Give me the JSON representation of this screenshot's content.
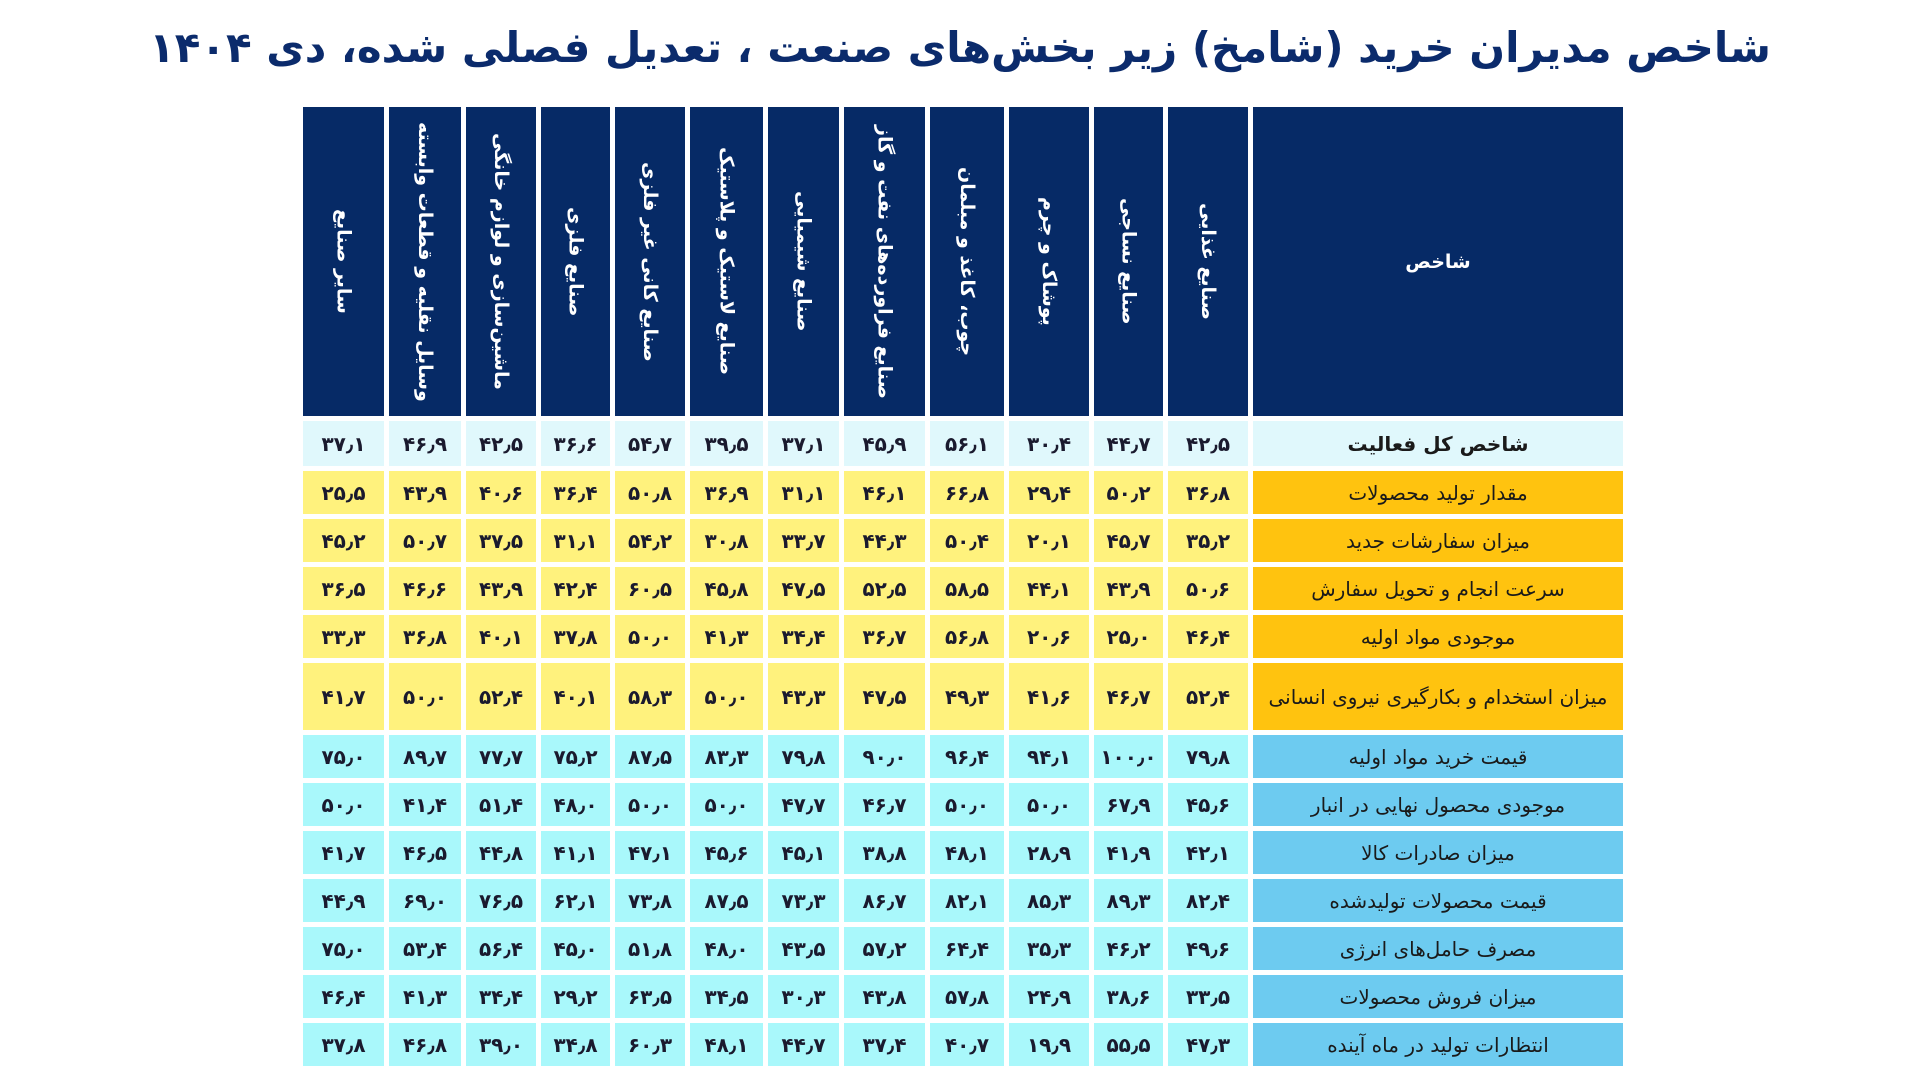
{
  "title": "شاخص مدیران خرید (شامخ) زیر بخش‌های صنعت ، تعدیل فصلی شده، دی ۱۴۰۴",
  "colors": {
    "header": "#062a66",
    "title": "#0b2b6c",
    "label_yellow": "#ffc30f",
    "cell_yellow": "#fff27d",
    "label_blue": "#6dcbf0",
    "cell_blue": "#a9f8fb",
    "total_row": "#e0f8fc"
  },
  "table": {
    "corner_header": "شاخص",
    "columns": [
      "صنایع غذایی",
      "صنایع نساجی",
      "پوشاک و چرم",
      "چوب، کاغذ و مبلمان",
      "صنایع فراورده‌های نفت و گاز",
      "صنایع شیمیایی",
      "صنایع لاستیک و پلاستیک",
      "صنایع کانی غیر فلزی",
      "صنایع فلزی",
      "ماشین‌سازی و لوازم خانگی",
      "وسایل نقلیه و قطعات وابسته",
      "سایر صنایع"
    ],
    "rows": [
      {
        "label": "شاخص کل فعالیت",
        "group": "total",
        "values": [
          "۴۲٫۵",
          "۴۴٫۷",
          "۳۰٫۴",
          "۵۶٫۱",
          "۴۵٫۹",
          "۳۷٫۱",
          "۳۹٫۵",
          "۵۴٫۷",
          "۳۶٫۶",
          "۴۲٫۵",
          "۴۶٫۹",
          "۳۷٫۱"
        ]
      },
      {
        "label": "مقدار تولید محصولات",
        "group": "yellow",
        "values": [
          "۳۶٫۸",
          "۵۰٫۲",
          "۲۹٫۴",
          "۶۶٫۸",
          "۴۶٫۱",
          "۳۱٫۱",
          "۳۶٫۹",
          "۵۰٫۸",
          "۳۶٫۴",
          "۴۰٫۶",
          "۴۳٫۹",
          "۲۵٫۵"
        ]
      },
      {
        "label": "میزان سفارشات جدید",
        "group": "yellow",
        "values": [
          "۳۵٫۲",
          "۴۵٫۷",
          "۲۰٫۱",
          "۵۰٫۴",
          "۴۴٫۳",
          "۳۳٫۷",
          "۳۰٫۸",
          "۵۴٫۲",
          "۳۱٫۱",
          "۳۷٫۵",
          "۵۰٫۷",
          "۴۵٫۲"
        ]
      },
      {
        "label": "سرعت انجام و تحویل سفارش",
        "group": "yellow",
        "values": [
          "۵۰٫۶",
          "۴۳٫۹",
          "۴۴٫۱",
          "۵۸٫۵",
          "۵۲٫۵",
          "۴۷٫۵",
          "۴۵٫۸",
          "۶۰٫۵",
          "۴۲٫۴",
          "۴۳٫۹",
          "۴۶٫۶",
          "۳۶٫۵"
        ]
      },
      {
        "label": "موجودی مواد اولیه",
        "group": "yellow",
        "values": [
          "۴۶٫۴",
          "۲۵٫۰",
          "۲۰٫۶",
          "۵۶٫۸",
          "۳۶٫۷",
          "۳۴٫۴",
          "۴۱٫۳",
          "۵۰٫۰",
          "۳۷٫۸",
          "۴۰٫۱",
          "۳۶٫۸",
          "۳۳٫۳"
        ]
      },
      {
        "label": "میزان استخدام و بکارگیری نیروی انسانی",
        "group": "yellow",
        "values": [
          "۵۲٫۴",
          "۴۶٫۷",
          "۴۱٫۶",
          "۴۹٫۳",
          "۴۷٫۵",
          "۴۳٫۳",
          "۵۰٫۰",
          "۵۸٫۳",
          "۴۰٫۱",
          "۵۲٫۴",
          "۵۰٫۰",
          "۴۱٫۷"
        ]
      },
      {
        "label": "قیمت خرید مواد اولیه",
        "group": "blue",
        "values": [
          "۷۹٫۸",
          "۱۰۰٫۰",
          "۹۴٫۱",
          "۹۶٫۴",
          "۹۰٫۰",
          "۷۹٫۸",
          "۸۳٫۳",
          "۸۷٫۵",
          "۷۵٫۲",
          "۷۷٫۷",
          "۸۹٫۷",
          "۷۵٫۰"
        ]
      },
      {
        "label": "موجودی محصول نهایی در انبار",
        "group": "blue",
        "values": [
          "۴۵٫۶",
          "۶۷٫۹",
          "۵۰٫۰",
          "۵۰٫۰",
          "۴۶٫۷",
          "۴۷٫۷",
          "۵۰٫۰",
          "۵۰٫۰",
          "۴۸٫۰",
          "۵۱٫۴",
          "۴۱٫۴",
          "۵۰٫۰"
        ]
      },
      {
        "label": "میزان صادرات کالا",
        "group": "blue",
        "values": [
          "۴۲٫۱",
          "۴۱٫۹",
          "۲۸٫۹",
          "۴۸٫۱",
          "۳۸٫۸",
          "۴۵٫۱",
          "۴۵٫۶",
          "۴۷٫۱",
          "۴۱٫۱",
          "۴۴٫۸",
          "۴۶٫۵",
          "۴۱٫۷"
        ]
      },
      {
        "label": "قیمت محصولات تولیدشده",
        "group": "blue",
        "values": [
          "۸۲٫۴",
          "۸۹٫۳",
          "۸۵٫۳",
          "۸۲٫۱",
          "۸۶٫۷",
          "۷۳٫۳",
          "۸۷٫۵",
          "۷۳٫۸",
          "۶۲٫۱",
          "۷۶٫۵",
          "۶۹٫۰",
          "۴۴٫۹"
        ]
      },
      {
        "label": "مصرف حامل‌های انرژی",
        "group": "blue",
        "values": [
          "۴۹٫۶",
          "۴۶٫۲",
          "۳۵٫۳",
          "۶۴٫۴",
          "۵۷٫۲",
          "۴۳٫۵",
          "۴۸٫۰",
          "۵۱٫۸",
          "۴۵٫۰",
          "۵۶٫۴",
          "۵۳٫۴",
          "۷۵٫۰"
        ]
      },
      {
        "label": "میزان فروش محصولات",
        "group": "blue",
        "values": [
          "۳۳٫۵",
          "۳۸٫۶",
          "۲۴٫۹",
          "۵۷٫۸",
          "۴۳٫۸",
          "۳۰٫۳",
          "۳۴٫۵",
          "۶۳٫۵",
          "۲۹٫۲",
          "۳۴٫۴",
          "۴۱٫۳",
          "۴۶٫۴"
        ]
      },
      {
        "label": "انتظارات تولید در ماه آینده",
        "group": "blue",
        "values": [
          "۴۷٫۳",
          "۵۵٫۵",
          "۱۹٫۹",
          "۴۰٫۷",
          "۳۷٫۴",
          "۴۴٫۷",
          "۴۸٫۱",
          "۶۰٫۳",
          "۳۴٫۸",
          "۳۹٫۰",
          "۴۶٫۸",
          "۳۷٫۸"
        ]
      }
    ]
  }
}
